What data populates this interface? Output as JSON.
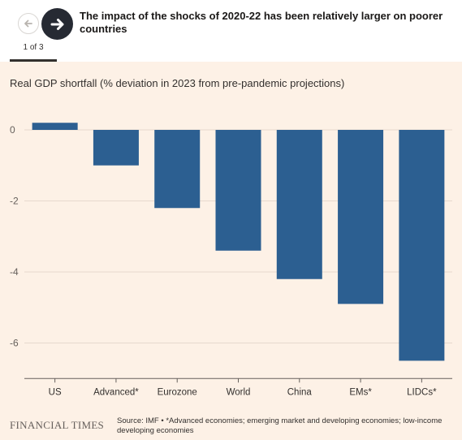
{
  "header": {
    "title": "The impact of the shocks of 2020-22 has been relatively larger on poorer countries",
    "counter": "1 of 3",
    "prev_icon": "arrow-left-icon",
    "next_icon": "arrow-right-icon"
  },
  "footer": {
    "logo": "FINANCIAL TIMES",
    "source": "Source: IMF • *Advanced economies; emerging market and developing economies; low-income developing economies"
  },
  "colors": {
    "bar": "#2c5f91",
    "background": "#fdf1e6",
    "grid": "#e6d9ce"
  },
  "chart_data": {
    "type": "bar",
    "title": "",
    "ylabel": "Real GDP shortfall (% deviation in 2023 from pre-pandemic projections)",
    "xlabel": "",
    "categories": [
      "US",
      "Advanced*",
      "Eurozone",
      "World",
      "China",
      "EMs*",
      "LIDCs*"
    ],
    "values": [
      0.2,
      -1.0,
      -2.2,
      -3.4,
      -4.2,
      -4.9,
      -6.5
    ],
    "ylim": [
      -7,
      0.4
    ],
    "yticks": [
      0,
      -2,
      -4,
      -6
    ],
    "grid": true,
    "legend": "none"
  }
}
